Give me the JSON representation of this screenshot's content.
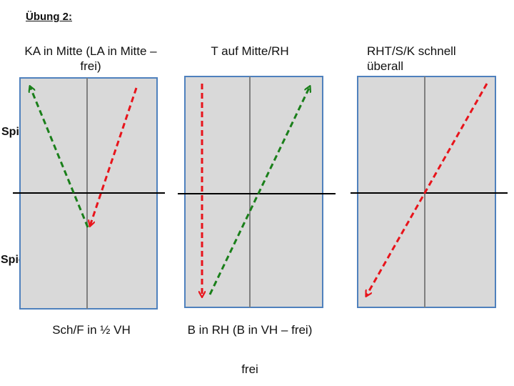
{
  "title": "Übung 2:",
  "side_labels": {
    "player_a": "Spieler A",
    "player_b": "Spieler B"
  },
  "panels": [
    {
      "top_caption": "KA in Mitte (LA in Mitte – frei)",
      "bottom_caption": "Sch/F in ½ VH"
    },
    {
      "top_caption": "T auf Mitte/RH",
      "bottom_caption": "B in RH (B in VH – frei)"
    },
    {
      "top_caption": "RHT/S/K schnell überall",
      "bottom_caption": ""
    }
  ],
  "footer": "frei",
  "colors": {
    "table_fill": "#d9d9d9",
    "table_border": "#4f81bd",
    "center_line": "#7f7f7f",
    "net": "#000000",
    "arrow_red": "#e8141b",
    "arrow_green": "#1a7f1a"
  }
}
